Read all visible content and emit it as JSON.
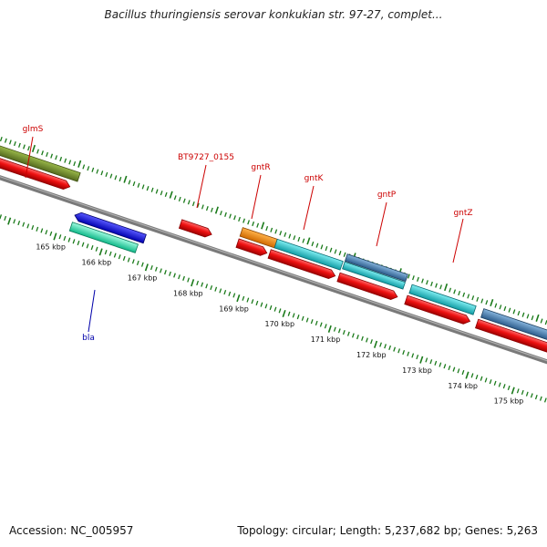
{
  "title": "Bacillus thuringiensis serovar konkukian str. 97-27, complet...",
  "accession": "Accession: NC_005957",
  "topology": "Topology: circular; Length: 5,237,682 bp; Genes: 5,263",
  "kbp_labels": [
    "165 kbp",
    "166 kbp",
    "167 kbp",
    "168 kbp",
    "169 kbp",
    "170 kbp",
    "171 kbp",
    "172 kbp",
    "173 kbp",
    "174 kbp",
    "175 kbp"
  ],
  "genes": [
    {
      "name": "glmS",
      "color": "#cc0000"
    },
    {
      "name": "BT9727_0155",
      "color": "#cc0000"
    },
    {
      "name": "gntR",
      "color": "#cc0000"
    },
    {
      "name": "gntK",
      "color": "#cc0000"
    },
    {
      "name": "gntP",
      "color": "#cc0000"
    },
    {
      "name": "gntZ",
      "color": "#cc0000"
    },
    {
      "name": "bla",
      "color": "#0000aa"
    }
  ],
  "colors": {
    "backbone": "#7a7a7a",
    "ticks": "#1a7a1a",
    "cds": "#ee1111",
    "olive": "#6b8e23",
    "blue": "#0000ee",
    "mint": "#22e6aa",
    "orange": "#ff8c00",
    "cyan": "#20c8d0",
    "steel": "#4682b4"
  }
}
